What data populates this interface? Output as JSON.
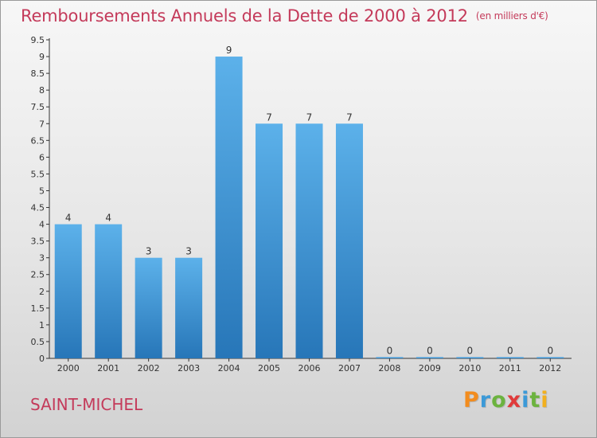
{
  "header": {
    "title": "Remboursements Annuels de la Dette de 2000 à 2012",
    "unit": "(en milliers d'€)"
  },
  "commune": "SAINT-MICHEL",
  "logo": {
    "text": "Proxiti",
    "colors": [
      "#f28c1e",
      "#3c9ad8",
      "#6cb33f",
      "#e03a3a",
      "#3c9ad8",
      "#6cb33f",
      "#f2b01e"
    ]
  },
  "chart_data": {
    "type": "bar",
    "categories": [
      "2000",
      "2001",
      "2002",
      "2003",
      "2004",
      "2005",
      "2006",
      "2007",
      "2008",
      "2009",
      "2010",
      "2011",
      "2012"
    ],
    "values": [
      4,
      4,
      3,
      3,
      9,
      7,
      7,
      7,
      0,
      0,
      0,
      0,
      0
    ],
    "data_labels": [
      "4",
      "4",
      "3",
      "3",
      "9",
      "7",
      "7",
      "7",
      "0",
      "0",
      "0",
      "0",
      "0"
    ],
    "title": "Remboursements Annuels de la Dette de 2000 à 2012",
    "ylim": [
      0,
      9.5
    ],
    "yticks": [
      0,
      0.5,
      1,
      1.5,
      2,
      2.5,
      3,
      3.5,
      4,
      4.5,
      5,
      5.5,
      6,
      6.5,
      7,
      7.5,
      8,
      8.5,
      9,
      9.5
    ],
    "ytick_labels": [
      "0",
      "0.5",
      "1",
      "1.5",
      "2",
      "2.5",
      "3",
      "3.5",
      "4",
      "4.5",
      "5",
      "5.5",
      "6",
      "6.5",
      "7",
      "7.5",
      "8",
      "8.5",
      "9",
      "9.5"
    ],
    "bar_color": "#3c96d8",
    "grid": false
  }
}
